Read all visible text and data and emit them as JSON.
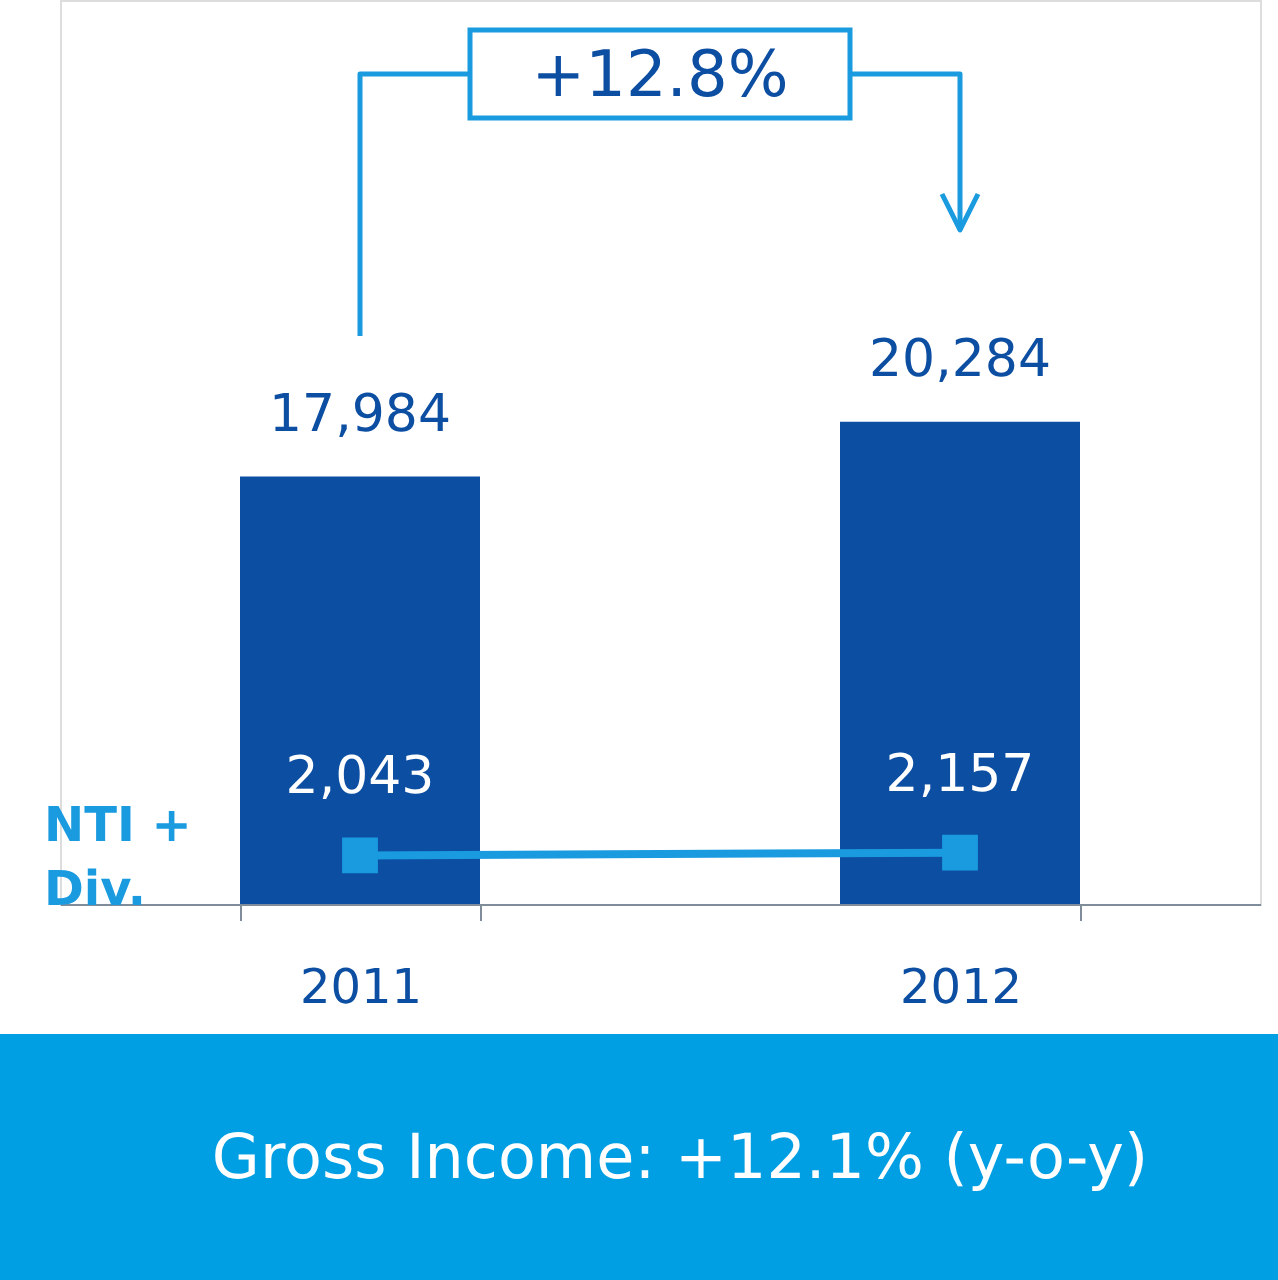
{
  "chart_data": {
    "type": "bar",
    "categories": [
      "2011",
      "2012"
    ],
    "marker": "square",
    "series": [
      {
        "color": "#0c4ea2",
        "values": [
          17984,
          20284
        ],
        "value_labels": [
          "17,984",
          "20,284"
        ]
      },
      {
        "type": "line",
        "name": "NTI + Div.",
        "color": "#1a9be0",
        "values": [
          2043,
          2157
        ],
        "value_labels": [
          "2,043",
          "2,157"
        ]
      }
    ],
    "annotations": [
      "+12.8%",
      "Gross Income: +12.1% (y-o-y)"
    ]
  }
}
